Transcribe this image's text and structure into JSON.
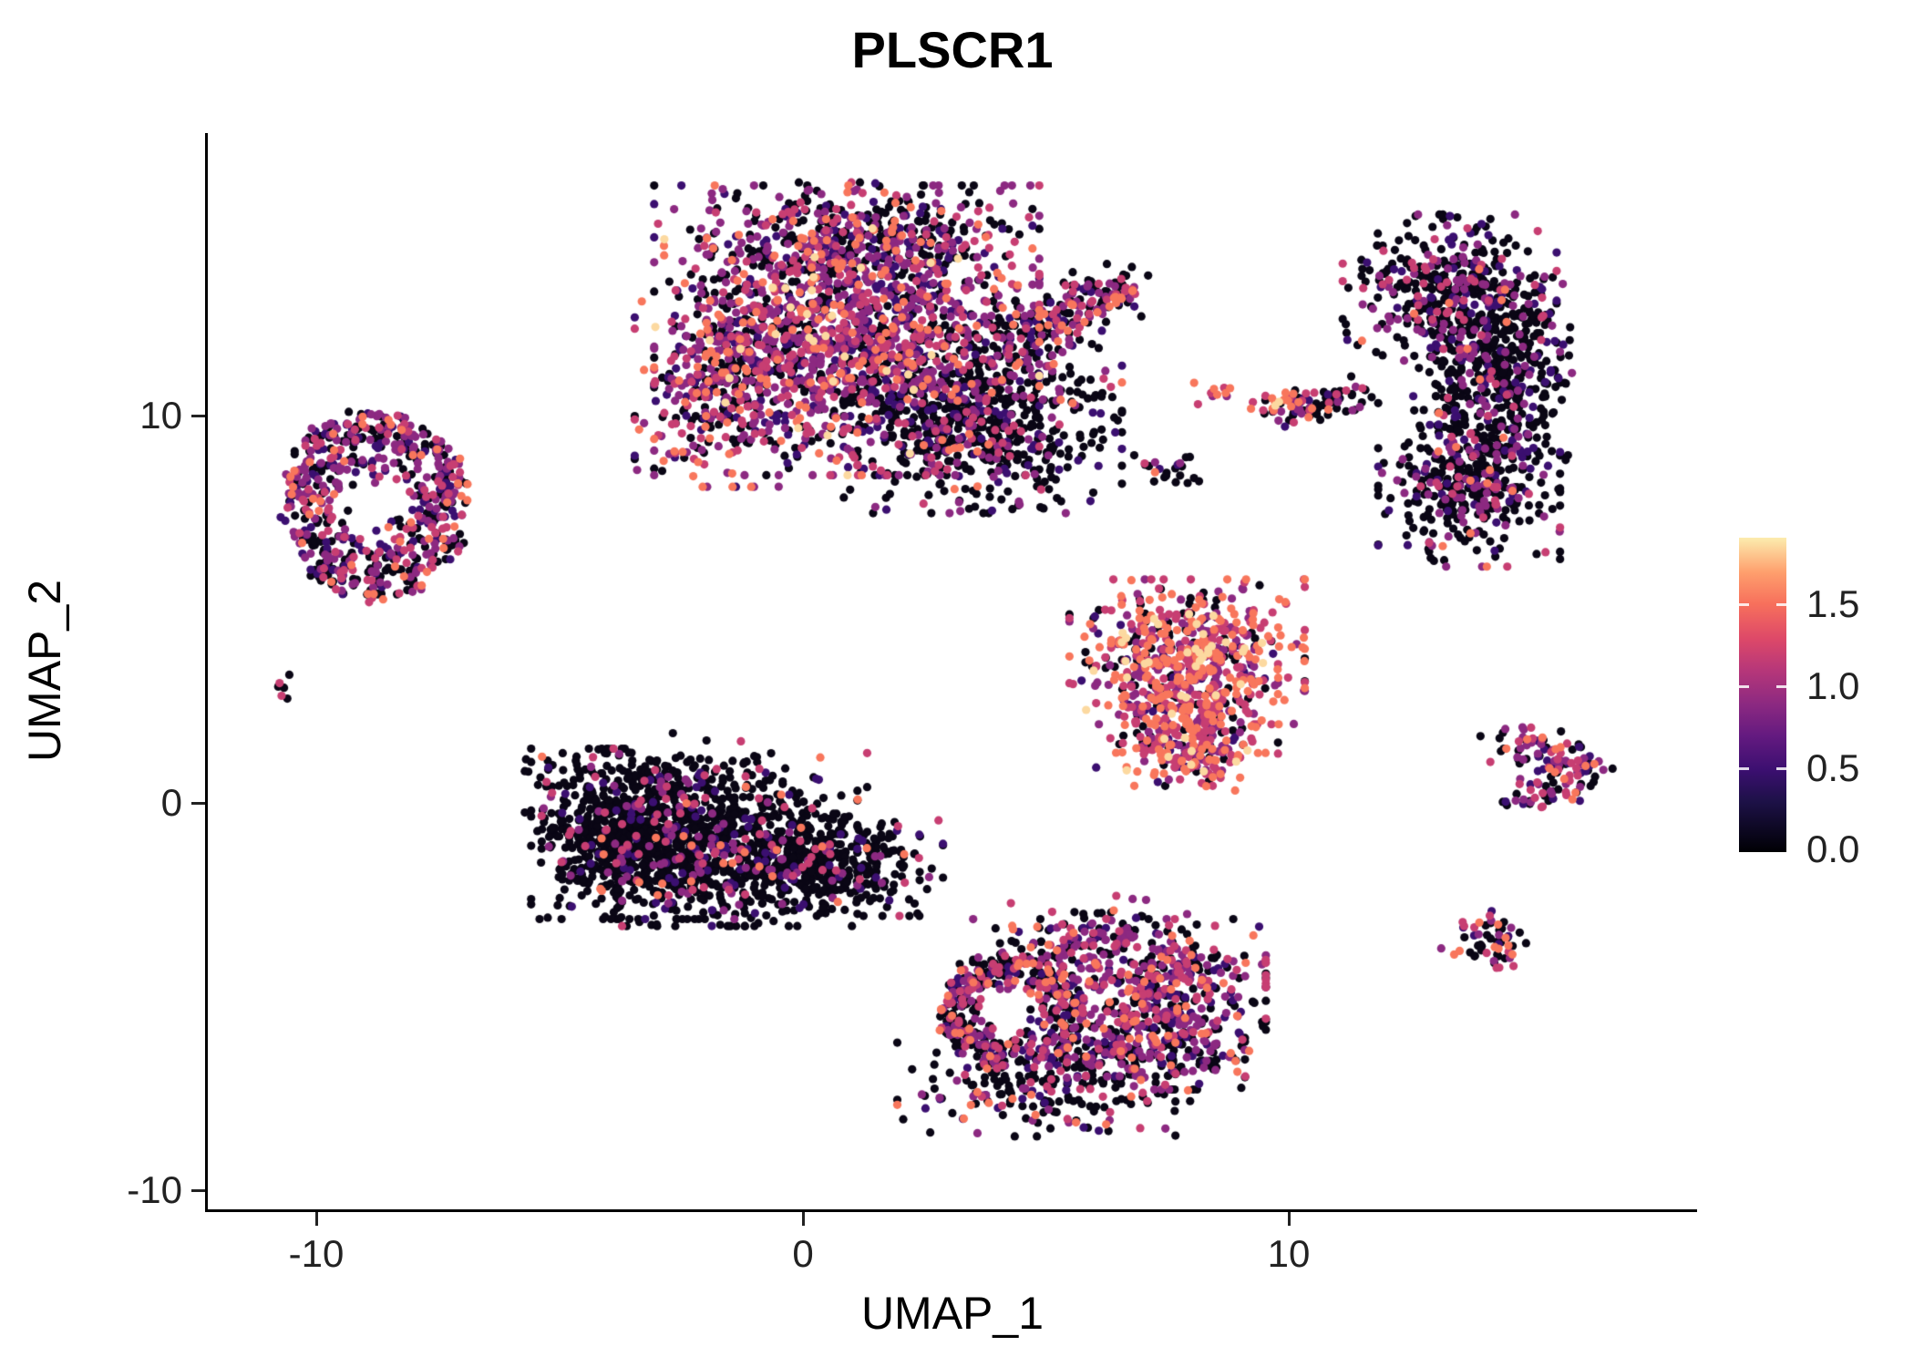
{
  "chart_data": {
    "type": "scatter",
    "title": "PLSCR1",
    "xlabel": "UMAP_1",
    "ylabel": "UMAP_2",
    "xlim": [
      -12.2,
      18.4
    ],
    "ylim": [
      -10.5,
      17.3
    ],
    "grid": false,
    "x_ticks": [
      -10,
      0,
      10
    ],
    "x_tick_labels": [
      "-10",
      "0",
      "10"
    ],
    "y_ticks": [
      10,
      0,
      -10
    ],
    "y_tick_labels": [
      "10",
      "0",
      "-10"
    ],
    "point_radius_px": 4.6,
    "colorbar": {
      "position": "right",
      "orientation": "vertical",
      "vmin": 0.0,
      "vmax": 1.9,
      "ticks": [
        1.5,
        1.0,
        0.5,
        0.0
      ],
      "tick_labels": [
        "1.5",
        "1.0",
        "0.5",
        "0.0"
      ],
      "colormap": "magma",
      "gradient_stops": [
        [
          "#000004",
          0
        ],
        [
          "#1d1147",
          16
        ],
        [
          "#3b0f70",
          26
        ],
        [
          "#641a80",
          37
        ],
        [
          "#8c2981",
          47
        ],
        [
          "#b73779",
          58
        ],
        [
          "#de4968",
          68
        ],
        [
          "#f7705c",
          79
        ],
        [
          "#fe9f6d",
          89
        ],
        [
          "#fcecae",
          100
        ]
      ]
    },
    "expression_levels": [
      {
        "value": 0.0,
        "color": "#0a0615"
      },
      {
        "value": 0.3,
        "color": "#3b0f70"
      },
      {
        "value": 0.65,
        "color": "#8c2981"
      },
      {
        "value": 1.0,
        "color": "#c73e72"
      },
      {
        "value": 1.35,
        "color": "#f8765c"
      },
      {
        "value": 1.7,
        "color": "#fcd9a0"
      }
    ],
    "clusters": [
      {
        "name": "top-center-main",
        "shape": "blob",
        "cx": 0.9,
        "cy": 12.2,
        "sx": 1.8,
        "sy": 1.7,
        "n": 1500,
        "w": [
          0.3,
          0.14,
          0.26,
          0.17,
          0.11,
          0.02
        ]
      },
      {
        "name": "top-center-right-dark",
        "shape": "blob",
        "cx": 3.7,
        "cy": 9.9,
        "sx": 1.3,
        "sy": 1.1,
        "n": 650,
        "w": [
          0.66,
          0.12,
          0.12,
          0.06,
          0.04,
          0
        ]
      },
      {
        "name": "top-center-upper",
        "shape": "blob",
        "cx": 1.2,
        "cy": 14.7,
        "sx": 1.6,
        "sy": 0.6,
        "n": 260,
        "w": [
          0.45,
          0.15,
          0.22,
          0.12,
          0.06,
          0
        ]
      },
      {
        "name": "top-center-left-lobe",
        "shape": "blob",
        "cx": -1.7,
        "cy": 10.8,
        "sx": 0.8,
        "sy": 1.2,
        "n": 280,
        "w": [
          0.34,
          0.14,
          0.24,
          0.17,
          0.11,
          0
        ]
      },
      {
        "name": "top-center-arm",
        "shape": "line",
        "x1": 4.3,
        "y1": 11.9,
        "x2": 6.4,
        "y2": 13.25,
        "th": 0.38,
        "n": 170,
        "w": [
          0.42,
          0.12,
          0.2,
          0.16,
          0.1,
          0
        ]
      },
      {
        "name": "top-center-arm-tip",
        "shape": "blob",
        "cx": 6.6,
        "cy": 13.3,
        "sx": 0.28,
        "sy": 0.22,
        "n": 25,
        "w": [
          0.2,
          0.1,
          0.2,
          0.3,
          0.2,
          0
        ]
      },
      {
        "name": "left-ring",
        "shape": "ring",
        "cx": -8.8,
        "cy": 7.7,
        "rx": 1.9,
        "ry": 2.4,
        "hole": 0.26,
        "n": 620,
        "w": [
          0.38,
          0.15,
          0.24,
          0.15,
          0.08,
          0
        ]
      },
      {
        "name": "left-tiny",
        "shape": "blob",
        "cx": -10.7,
        "cy": 3.0,
        "sx": 0.18,
        "sy": 0.14,
        "n": 6,
        "w": [
          0.35,
          0,
          0.15,
          0.3,
          0.2,
          0
        ]
      },
      {
        "name": "center-left-dark-a",
        "shape": "blob",
        "cx": -3.5,
        "cy": -0.8,
        "sx": 0.95,
        "sy": 1.0,
        "n": 850,
        "w": [
          0.86,
          0.05,
          0.04,
          0.03,
          0.02,
          0
        ]
      },
      {
        "name": "center-left-dark-b",
        "shape": "blob",
        "cx": -1.3,
        "cy": -1.2,
        "sx": 1.1,
        "sy": 0.9,
        "n": 650,
        "w": [
          0.82,
          0.06,
          0.06,
          0.04,
          0.02,
          0
        ]
      },
      {
        "name": "center-left-dark-taper",
        "shape": "blob",
        "cx": 0.9,
        "cy": -1.6,
        "sx": 0.9,
        "sy": 0.6,
        "n": 280,
        "w": [
          0.84,
          0.05,
          0.05,
          0.04,
          0.02,
          0
        ]
      },
      {
        "name": "center-left-top-scatter",
        "shape": "blob",
        "cx": -2.2,
        "cy": 0.7,
        "sx": 1.6,
        "sy": 0.5,
        "n": 90,
        "w": [
          0.8,
          0.05,
          0.06,
          0.05,
          0.04,
          0
        ]
      },
      {
        "name": "center-right-bright-upper",
        "shape": "blob",
        "cx": 7.9,
        "cy": 3.9,
        "sx": 1.1,
        "sy": 0.85,
        "n": 500,
        "w": [
          0.13,
          0.05,
          0.17,
          0.28,
          0.3,
          0.07
        ]
      },
      {
        "name": "center-right-bright-lower",
        "shape": "blob",
        "cx": 7.9,
        "cy": 2.2,
        "sx": 0.85,
        "sy": 0.8,
        "n": 300,
        "w": [
          0.15,
          0.05,
          0.18,
          0.28,
          0.28,
          0.06
        ]
      },
      {
        "name": "center-right-bright-tip",
        "shape": "blob",
        "cx": 8.0,
        "cy": 1.2,
        "sx": 0.45,
        "sy": 0.4,
        "n": 80,
        "w": [
          0.2,
          0.06,
          0.2,
          0.26,
          0.24,
          0.04
        ]
      },
      {
        "name": "small-pair",
        "shape": "blob",
        "cx": 8.3,
        "cy": 10.6,
        "sx": 0.22,
        "sy": 0.16,
        "n": 10,
        "w": [
          0.2,
          0,
          0.2,
          0.3,
          0.3,
          0
        ]
      },
      {
        "name": "small-streak-head",
        "shape": "blob",
        "cx": 9.85,
        "cy": 10.2,
        "sx": 0.3,
        "sy": 0.22,
        "n": 40,
        "w": [
          0.15,
          0.05,
          0.15,
          0.25,
          0.35,
          0.05
        ]
      },
      {
        "name": "small-streak-tail",
        "shape": "line",
        "x1": 10.2,
        "y1": 10.3,
        "x2": 11.5,
        "y2": 10.6,
        "th": 0.2,
        "n": 55,
        "w": [
          0.75,
          0.1,
          0.08,
          0.05,
          0.02,
          0
        ]
      },
      {
        "name": "small-dark-dab",
        "shape": "blob",
        "cx": 7.5,
        "cy": 8.6,
        "sx": 0.38,
        "sy": 0.25,
        "n": 22,
        "w": [
          0.65,
          0.1,
          0.15,
          0.05,
          0.05,
          0
        ]
      },
      {
        "name": "right-crescent-top",
        "shape": "blob",
        "cx": 13.3,
        "cy": 13.1,
        "sx": 1.0,
        "sy": 0.95,
        "n": 420,
        "w": [
          0.62,
          0.14,
          0.14,
          0.08,
          0.02,
          0
        ]
      },
      {
        "name": "right-crescent-mid",
        "shape": "blob",
        "cx": 14.35,
        "cy": 10.9,
        "sx": 0.7,
        "sy": 1.25,
        "n": 380,
        "w": [
          0.74,
          0.1,
          0.1,
          0.05,
          0.01,
          0
        ]
      },
      {
        "name": "right-crescent-bottom",
        "shape": "blob",
        "cx": 13.7,
        "cy": 8.3,
        "sx": 0.85,
        "sy": 1.0,
        "n": 380,
        "w": [
          0.66,
          0.1,
          0.12,
          0.08,
          0.04,
          0
        ]
      },
      {
        "name": "right-chevron-upper",
        "shape": "line",
        "x1": 14.35,
        "y1": 1.7,
        "x2": 16.2,
        "y2": 0.95,
        "th": 0.28,
        "n": 70,
        "w": [
          0.3,
          0.12,
          0.22,
          0.22,
          0.14,
          0
        ]
      },
      {
        "name": "right-chevron-lower",
        "shape": "line",
        "x1": 14.6,
        "y1": -0.05,
        "x2": 16.2,
        "y2": 0.85,
        "th": 0.26,
        "n": 60,
        "w": [
          0.35,
          0.12,
          0.22,
          0.2,
          0.11,
          0
        ]
      },
      {
        "name": "right-small-round",
        "shape": "blob",
        "cx": 14.05,
        "cy": -3.55,
        "sx": 0.42,
        "sy": 0.42,
        "n": 55,
        "w": [
          0.55,
          0.08,
          0.12,
          0.15,
          0.1,
          0
        ]
      },
      {
        "name": "bottom-left-ring",
        "shape": "ring",
        "cx": 4.3,
        "cy": -5.4,
        "rx": 1.45,
        "ry": 1.45,
        "hole": 0.35,
        "n": 430,
        "w": [
          0.44,
          0.12,
          0.22,
          0.14,
          0.08,
          0
        ]
      },
      {
        "name": "bottom-right-lobe",
        "shape": "blob",
        "cx": 7.1,
        "cy": -5.2,
        "sx": 1.1,
        "sy": 1.0,
        "n": 520,
        "w": [
          0.33,
          0.12,
          0.27,
          0.18,
          0.1,
          0
        ]
      },
      {
        "name": "bottom-top-bump",
        "shape": "blob",
        "cx": 5.7,
        "cy": -3.5,
        "sx": 1.0,
        "sy": 0.5,
        "n": 130,
        "w": [
          0.4,
          0.12,
          0.25,
          0.15,
          0.08,
          0
        ]
      },
      {
        "name": "bottom-lower-edge",
        "shape": "blob",
        "cx": 4.8,
        "cy": -7.4,
        "sx": 1.3,
        "sy": 0.55,
        "n": 190,
        "w": [
          0.66,
          0.1,
          0.12,
          0.08,
          0.04,
          0
        ]
      },
      {
        "name": "bottom-lower-right",
        "shape": "blob",
        "cx": 7.0,
        "cy": -6.6,
        "sx": 0.95,
        "sy": 0.5,
        "n": 130,
        "w": [
          0.6,
          0.1,
          0.15,
          0.1,
          0.05,
          0
        ]
      }
    ]
  }
}
